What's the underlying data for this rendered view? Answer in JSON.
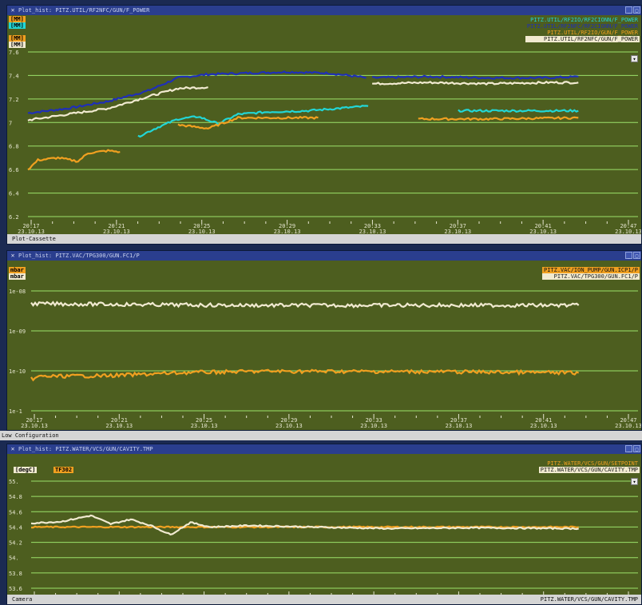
{
  "time_ticks": [
    {
      "t": "20:17",
      "d": "23.10.13"
    },
    {
      "t": "20:21",
      "d": "23.10.13"
    },
    {
      "t": "20:25",
      "d": "23.10.13"
    },
    {
      "t": "20:29",
      "d": "23.10.13"
    },
    {
      "t": "20:33",
      "d": "23.10.13"
    },
    {
      "t": "20:37",
      "d": "23.10.13"
    },
    {
      "t": "20:41",
      "d": "23.10.13"
    },
    {
      "t": "20:47",
      "d": "23.10.13"
    }
  ],
  "windows": [
    {
      "title": "Plot_hist: PITZ.UTIL/RF2NFC/GUN/F_POWER",
      "channels": [
        "[MM]",
        "[MM]",
        "[MM]",
        "[MM]"
      ],
      "legend": [
        {
          "text": "PITZ.UTIL/RF2IO/RF2CIONN/F_POWER",
          "color": "#22d6d6"
        },
        {
          "text": "PITZ.UTIL/RF2NFC/RF2CIONN/F_POWER",
          "color": "#1f2fb8"
        },
        {
          "text": "PITZ.UTIL/RF2IO/GUN/F_POWER",
          "color": "#f0a020"
        },
        {
          "text": "PITZ.UTIL/RF2NFC/GUN/F_POWER",
          "color": "#f1ead0"
        }
      ],
      "status": "Plot-Cassette",
      "status_right": "",
      "chart_data": {
        "type": "line",
        "y_ticks": [
          "7.6",
          "7.4",
          "7.2",
          "7",
          "6.8",
          "6.6",
          "6.4",
          "6.2"
        ],
        "ylim": [
          6.2,
          7.6
        ],
        "xlim": [
          0,
          30
        ],
        "series": [
          {
            "name": "PITZ.UTIL/RF2NFC/RF2CIONN/F_POWER",
            "color": "#1f2fb8",
            "segments": [
              [
                [
                  0,
                  7.08
                ],
                [
                  2,
                  7.12
                ],
                [
                  4,
                  7.18
                ],
                [
                  6,
                  7.27
                ],
                [
                  7.5,
                  7.38
                ],
                [
                  9,
                  7.41
                ],
                [
                  11,
                  7.42
                ],
                [
                  13,
                  7.43
                ],
                [
                  15,
                  7.42
                ],
                [
                  16.5,
                  7.39
                ],
                [
                  16.9,
                  7.38
                ]
              ],
              [
                [
                  17.2,
                  7.38
                ],
                [
                  20,
                  7.39
                ],
                [
                  23,
                  7.38
                ],
                [
                  26,
                  7.38
                ],
                [
                  27.5,
                  7.39
                ]
              ]
            ]
          },
          {
            "name": "PITZ.UTIL/RF2NFC/GUN/F_POWER",
            "color": "#f1ead0",
            "segments": [
              [
                [
                  0,
                  7.02
                ],
                [
                  2,
                  7.07
                ],
                [
                  4,
                  7.12
                ],
                [
                  6,
                  7.22
                ],
                [
                  7.5,
                  7.29
                ],
                [
                  9,
                  7.3
                ]
              ],
              [
                [
                  17.2,
                  7.33
                ],
                [
                  20,
                  7.34
                ],
                [
                  23,
                  7.33
                ],
                [
                  26,
                  7.34
                ],
                [
                  27.5,
                  7.34
                ]
              ]
            ]
          },
          {
            "name": "PITZ.UTIL/RF2IO/RF2CIONN/F_POWER",
            "color": "#22d6d6",
            "segments": [
              [
                [
                  5.5,
                  6.88
                ],
                [
                  6.5,
                  6.96
                ],
                [
                  7.5,
                  7.03
                ],
                [
                  8.5,
                  7.05
                ],
                [
                  9.5,
                  6.99
                ],
                [
                  10.5,
                  7.07
                ],
                [
                  12,
                  7.09
                ],
                [
                  14,
                  7.1
                ],
                [
                  15.5,
                  7.12
                ],
                [
                  17,
                  7.14
                ]
              ],
              [
                [
                  21.5,
                  7.1
                ],
                [
                  24,
                  7.1
                ],
                [
                  27.5,
                  7.1
                ]
              ]
            ]
          },
          {
            "name": "PITZ.UTIL/RF2IO/GUN/F_POWER",
            "color": "#f0a020",
            "segments": [
              [
                [
                  0,
                  6.6
                ],
                [
                  0.5,
                  6.68
                ],
                [
                  1.5,
                  6.7
                ],
                [
                  2.5,
                  6.67
                ],
                [
                  3,
                  6.74
                ],
                [
                  4,
                  6.76
                ],
                [
                  4.6,
                  6.75
                ]
              ],
              [
                [
                  7.5,
                  6.98
                ],
                [
                  9,
                  6.95
                ],
                [
                  10.5,
                  7.04
                ],
                [
                  12.5,
                  7.04
                ],
                [
                  14.5,
                  7.04
                ]
              ],
              [
                [
                  19.5,
                  7.03
                ],
                [
                  23,
                  7.03
                ],
                [
                  27.5,
                  7.04
                ]
              ]
            ]
          }
        ]
      }
    },
    {
      "title": "Plot_hist: PITZ.VAC/TPG300/GUN.FC1/P",
      "channels": [
        "mbar",
        "mbar"
      ],
      "legend": [
        {
          "text": "PITZ.VAC/ION_PUMP/GUN.ICP1/P",
          "color": "#f0a020"
        },
        {
          "text": "PITZ.VAC/TPG300/GUN.FC1/P",
          "color": "#f1ead0"
        }
      ],
      "status": "Low Configuration",
      "status_right": "",
      "chart_data": {
        "type": "line",
        "y_ticks": [
          "1e-08",
          "1e-09",
          "1e-10",
          "1e-1"
        ],
        "ylim": [
          3,
          0
        ],
        "xlim": [
          0,
          30
        ],
        "series": [
          {
            "name": "PITZ.VAC/TPG300/GUN.FC1/P",
            "color": "#f1ead0",
            "segments": [
              [
                [
                  0,
                  0.32
                ],
                [
                  10,
                  0.36
                ],
                [
                  20,
                  0.36
                ],
                [
                  27.5,
                  0.36
                ]
              ]
            ]
          },
          {
            "name": "PITZ.VAC/ION_PUMP/GUN.ICP1/P",
            "color": "#f0a020",
            "segments": [
              [
                [
                  0,
                  2.2
                ],
                [
                  0.5,
                  2.14
                ],
                [
                  4,
                  2.12
                ],
                [
                  8,
                  2.04
                ],
                [
                  12,
                  2.01
                ],
                [
                  20,
                  2.02
                ],
                [
                  27.5,
                  2.05
                ]
              ]
            ]
          }
        ]
      }
    },
    {
      "title": "Plot_hist: PITZ.WATER/VCS/GUN/CAVITY.TMP",
      "channels": [
        "[degC]",
        "TF302"
      ],
      "legend": [
        {
          "text": "PITZ.WATER/VCS/GUN/SETPOINT",
          "color": "#f0a020"
        },
        {
          "text": "PITZ.WATER/VCS/GUN/CAVITY.TMP",
          "color": "#f1ead0"
        }
      ],
      "status": "Camera",
      "status_right": "PITZ.WATER/VCS/GUN/CAVITY.TMP",
      "chart_data": {
        "type": "line",
        "y_ticks": [
          "55.",
          "54.8",
          "54.6",
          "54.4",
          "54.2",
          "54.",
          "53.8",
          "53.6"
        ],
        "ylim": [
          53.6,
          55.0
        ],
        "xlim": [
          0,
          30
        ],
        "series": [
          {
            "name": "PITZ.WATER/VCS/GUN/SETPOINT",
            "color": "#f0a020",
            "segments": [
              [
                [
                  0,
                  54.4
                ],
                [
                  27.5,
                  54.4
                ]
              ]
            ]
          },
          {
            "name": "PITZ.WATER/VCS/GUN/CAVITY.TMP",
            "color": "#f1ead0",
            "segments": [
              [
                [
                  0,
                  54.45
                ],
                [
                  1.5,
                  54.47
                ],
                [
                  3,
                  54.55
                ],
                [
                  4,
                  54.44
                ],
                [
                  5,
                  54.5
                ],
                [
                  6,
                  54.42
                ],
                [
                  7,
                  54.3
                ],
                [
                  8,
                  54.46
                ],
                [
                  9,
                  54.4
                ],
                [
                  11,
                  54.42
                ],
                [
                  14,
                  54.4
                ],
                [
                  18,
                  54.38
                ],
                [
                  22,
                  54.39
                ],
                [
                  27.5,
                  54.38
                ]
              ]
            ]
          }
        ]
      }
    }
  ]
}
